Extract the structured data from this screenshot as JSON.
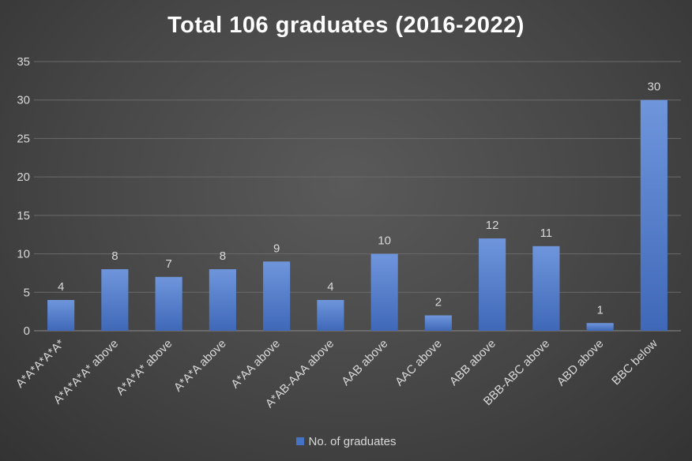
{
  "colors": {
    "bar": "#4472c4",
    "bar_light": "#6f96dc",
    "gridline": "#6a6a6a",
    "text": "#d9d9d9",
    "title": "#ffffff"
  },
  "chart_data": {
    "type": "bar",
    "title": "Total 106 graduates (2016-2022)",
    "xlabel": "",
    "ylabel": "",
    "categories": [
      "A*A*A*A*A*",
      "A*A*A*A* above",
      "A*A*A* above",
      "A*A*A above",
      "A*AA above",
      "A*AB-AAA above",
      "AAB above",
      "AAC above",
      "ABB above",
      "BBB-ABC above",
      "ABD above",
      "BBC below"
    ],
    "series": [
      {
        "name": "No. of graduates",
        "values": [
          4,
          8,
          7,
          8,
          9,
          4,
          10,
          2,
          12,
          11,
          1,
          30
        ]
      }
    ],
    "yticks": [
      0,
      5,
      10,
      15,
      20,
      25,
      30,
      35
    ],
    "ylim": [
      0,
      35
    ],
    "grid": true,
    "legend_position": "bottom",
    "data_labels": true
  }
}
